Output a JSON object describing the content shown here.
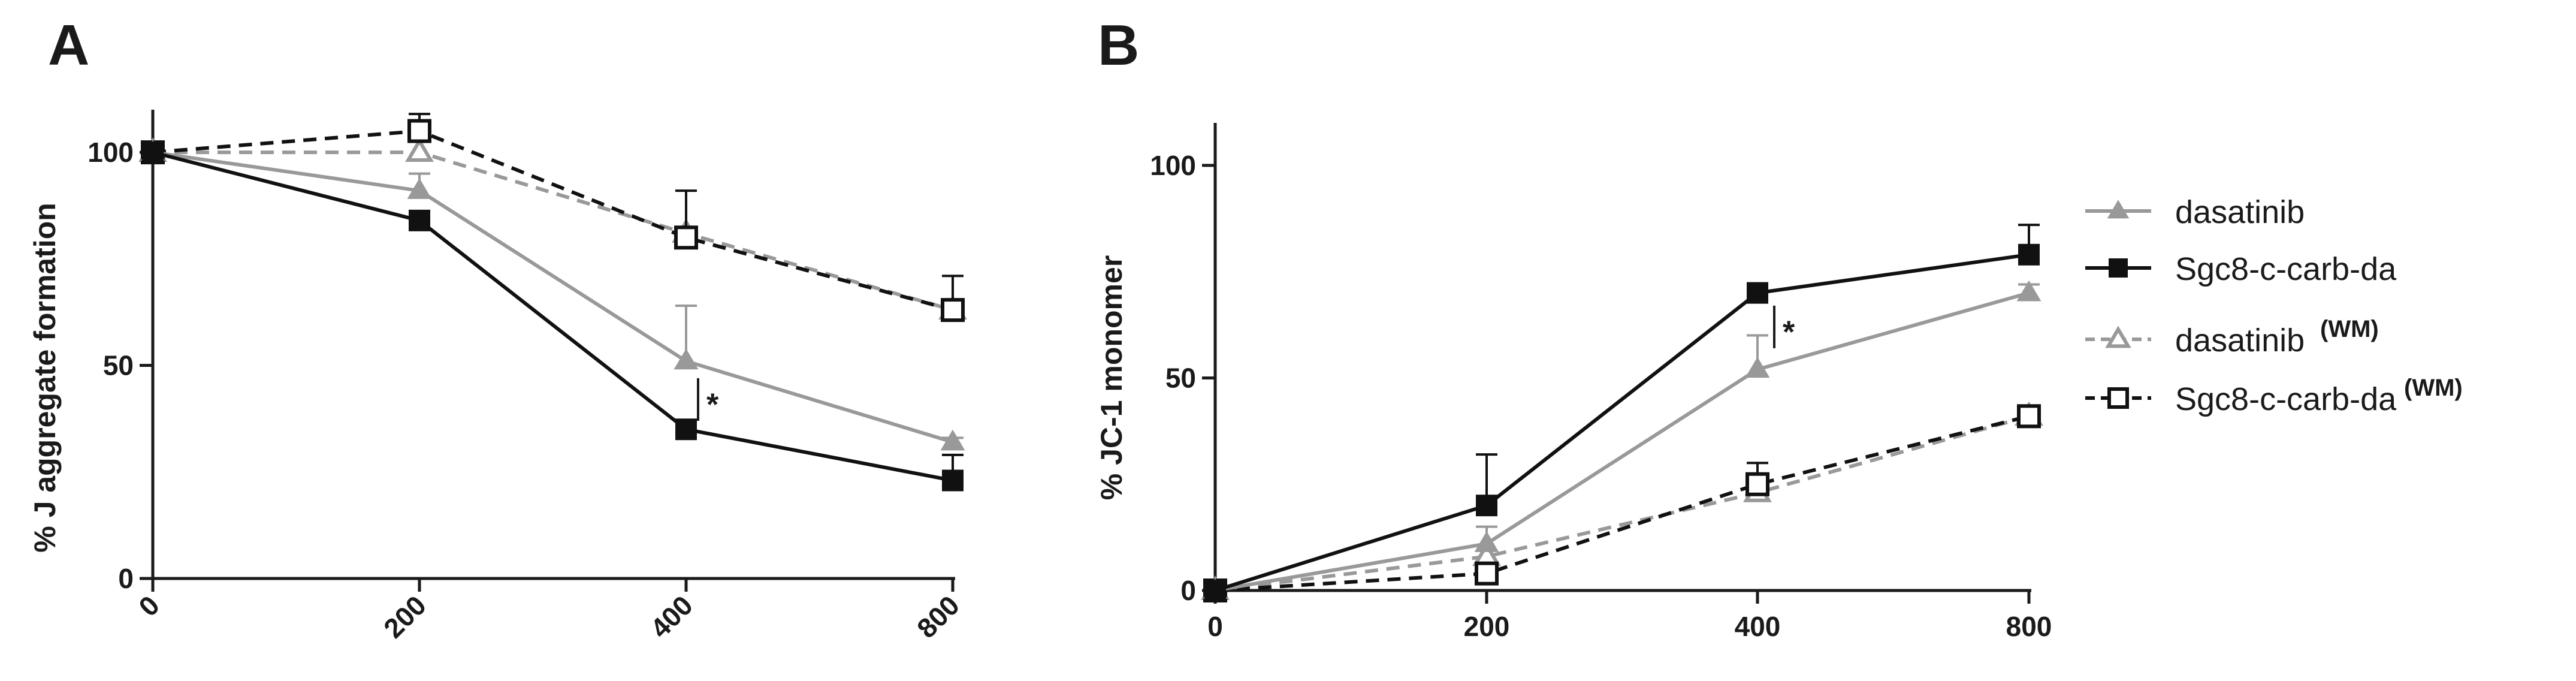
{
  "colors": {
    "dasatinib": "#999999",
    "sgc8": "#111111",
    "dasatinib_wm": "#999999",
    "sgc8_wm": "#111111",
    "axis": "#1a1a1a"
  },
  "legend": {
    "items": [
      {
        "key": "dasatinib",
        "label": "dasatinib",
        "sup": ""
      },
      {
        "key": "sgc8",
        "label": "Sgc8-c-carb-da",
        "sup": ""
      },
      {
        "key": "dasatinib_wm",
        "label": "dasatinib",
        "sup": "(WM)"
      },
      {
        "key": "sgc8_wm",
        "label": "Sgc8-c-carb-da",
        "sup": "(WM)"
      }
    ]
  },
  "chart_data": [
    {
      "panel": "A",
      "type": "line",
      "ylabel": "% J aggregate formation",
      "xlabel": "",
      "x": [
        0,
        200,
        400,
        800
      ],
      "x_tick_labels": [
        "0",
        "200",
        "400",
        "800"
      ],
      "x_tick_rotation": "diagonal",
      "ylim": [
        0,
        110
      ],
      "y_ticks": [
        0,
        50,
        100
      ],
      "y_tick_labels": [
        "0",
        "50",
        "100"
      ],
      "significance": [
        {
          "x": 400,
          "label": "*"
        }
      ],
      "series": [
        {
          "key": "dasatinib",
          "name": "dasatinib",
          "marker": "triangle",
          "filled": true,
          "dashed": false,
          "values": [
            100,
            91,
            51,
            32
          ],
          "errors": [
            0,
            4,
            13,
            1
          ]
        },
        {
          "key": "sgc8",
          "name": "Sgc8-c-carb-da",
          "marker": "square",
          "filled": true,
          "dashed": false,
          "values": [
            100,
            84,
            35,
            23
          ],
          "errors": [
            0,
            0,
            0,
            6
          ]
        },
        {
          "key": "dasatinib_wm",
          "name": "dasatinib (WM)",
          "marker": "triangle",
          "filled": false,
          "dashed": true,
          "values": [
            100,
            100,
            81,
            63
          ],
          "errors": [
            0,
            0,
            0,
            0
          ]
        },
        {
          "key": "sgc8_wm",
          "name": "Sgc8-c-carb-da (WM)",
          "marker": "square",
          "filled": false,
          "dashed": true,
          "values": [
            100,
            105,
            80,
            63
          ],
          "errors": [
            0,
            4,
            11,
            8
          ]
        }
      ]
    },
    {
      "panel": "B",
      "type": "line",
      "ylabel": "% JC-1 monomer",
      "xlabel": "",
      "x": [
        0,
        200,
        400,
        800
      ],
      "x_tick_labels": [
        "0",
        "200",
        "400",
        "800"
      ],
      "x_tick_rotation": "horizontal",
      "ylim": [
        0,
        110
      ],
      "y_ticks": [
        0,
        50,
        100
      ],
      "y_tick_labels": [
        "0",
        "50",
        "100"
      ],
      "significance": [
        {
          "x": 400,
          "label": "*"
        }
      ],
      "series": [
        {
          "key": "dasatinib",
          "name": "dasatinib",
          "marker": "triangle",
          "filled": true,
          "dashed": false,
          "values": [
            0,
            11,
            52,
            70
          ],
          "errors": [
            0,
            4,
            8,
            2
          ]
        },
        {
          "key": "sgc8",
          "name": "Sgc8-c-carb-da",
          "marker": "square",
          "filled": true,
          "dashed": false,
          "values": [
            0,
            20,
            70,
            79
          ],
          "errors": [
            0,
            12,
            0,
            7
          ]
        },
        {
          "key": "dasatinib_wm",
          "name": "dasatinib (WM)",
          "marker": "triangle",
          "filled": false,
          "dashed": true,
          "values": [
            0,
            8,
            23,
            41
          ],
          "errors": [
            0,
            0,
            3,
            0
          ]
        },
        {
          "key": "sgc8_wm",
          "name": "Sgc8-c-carb-da (WM)",
          "marker": "square",
          "filled": false,
          "dashed": true,
          "values": [
            0,
            4,
            25,
            41
          ],
          "errors": [
            0,
            0,
            5,
            0
          ]
        }
      ]
    }
  ]
}
